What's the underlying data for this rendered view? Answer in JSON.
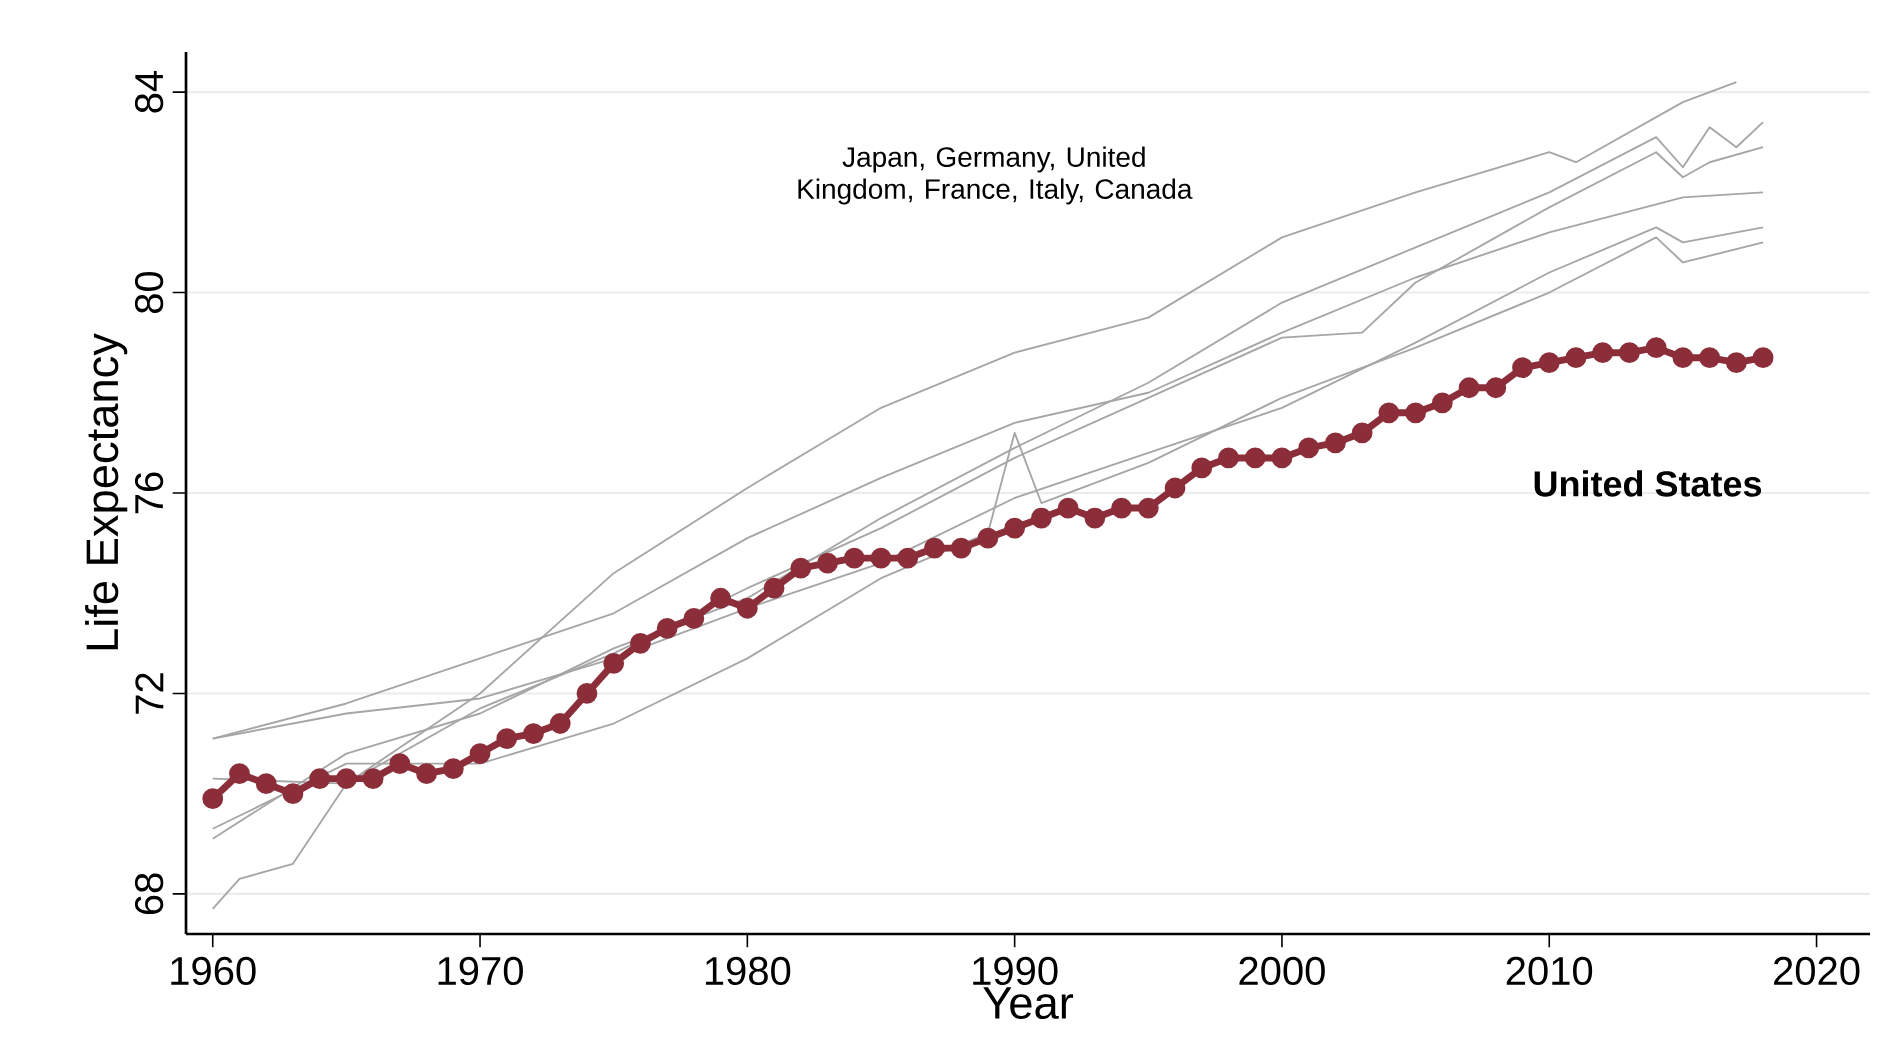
{
  "chart_data": {
    "type": "line",
    "xlabel": "Year",
    "ylabel": "Life Expectancy",
    "xlim": [
      1959,
      2022
    ],
    "ylim": [
      67.2,
      84.8
    ],
    "xticks": [
      1960,
      1970,
      1980,
      1990,
      2000,
      2010,
      2020
    ],
    "yticks": [
      68,
      72,
      76,
      80,
      84
    ],
    "grid": "y",
    "legend": false,
    "marker": "none",
    "line_style": "solid",
    "annotations": [
      "Japan, Germany, United Kingdom, France, Italy, Canada"
    ],
    "series": [
      {
        "color": "#a6a6a6",
        "x": [
          1960,
          1961,
          1963,
          1965,
          1970,
          1975,
          1980,
          1985,
          1990,
          1995,
          2000,
          2005,
          2010,
          2011,
          2015,
          2017
        ],
        "values": [
          67.7,
          68.3,
          68.6,
          70.2,
          72.0,
          74.4,
          76.1,
          77.7,
          78.8,
          79.5,
          81.1,
          82.0,
          82.8,
          82.6,
          83.8,
          84.2
        ]
      },
      {
        "color": "#a6a6a6",
        "x": [
          1960,
          1965,
          1970,
          1975,
          1980,
          1985,
          1990,
          1995,
          2000,
          2005,
          2010,
          2014,
          2015,
          2016,
          2017,
          2018
        ],
        "values": [
          69.1,
          70.8,
          71.6,
          72.9,
          73.9,
          75.5,
          76.9,
          78.2,
          79.8,
          80.9,
          82.0,
          83.1,
          82.5,
          83.3,
          82.9,
          83.4
        ]
      },
      {
        "color": "#a6a6a6",
        "x": [
          1960,
          1965,
          1970,
          1975,
          1980,
          1985,
          1990,
          1995,
          2000,
          2003,
          2005,
          2010,
          2014,
          2015,
          2016,
          2018
        ],
        "values": [
          70.3,
          70.2,
          71.7,
          72.8,
          74.1,
          75.3,
          76.7,
          77.9,
          79.1,
          79.2,
          80.2,
          81.7,
          82.8,
          82.3,
          82.6,
          82.9
        ]
      },
      {
        "color": "#a6a6a6",
        "x": [
          1960,
          1965,
          1970,
          1975,
          1980,
          1985,
          1990,
          1995,
          2000,
          2005,
          2010,
          2015,
          2018
        ],
        "values": [
          71.1,
          71.8,
          72.7,
          73.6,
          75.1,
          76.3,
          77.4,
          78.0,
          79.2,
          80.3,
          81.2,
          81.9,
          82.0
        ]
      },
      {
        "color": "#a6a6a6",
        "x": [
          1960,
          1965,
          1970,
          1975,
          1980,
          1985,
          1990,
          1995,
          2000,
          2005,
          2010,
          2014,
          2015,
          2018
        ],
        "values": [
          71.1,
          71.6,
          71.9,
          72.7,
          73.7,
          74.6,
          75.9,
          76.8,
          77.7,
          79.0,
          80.4,
          81.3,
          81.0,
          81.3
        ]
      },
      {
        "color": "#a6a6a6",
        "x": [
          1960,
          1965,
          1970,
          1975,
          1980,
          1985,
          1989,
          1990,
          1991,
          1995,
          2000,
          2005,
          2010,
          2014,
          2015,
          2018
        ],
        "values": [
          69.3,
          70.6,
          70.6,
          71.4,
          72.7,
          74.3,
          75.2,
          77.2,
          75.8,
          76.6,
          77.9,
          78.9,
          80.0,
          81.1,
          80.6,
          81.0
        ]
      },
      {
        "name": "United States",
        "color": "#8b2e3a",
        "marker": "circle",
        "x": [
          1960,
          1961,
          1962,
          1963,
          1964,
          1965,
          1966,
          1967,
          1968,
          1969,
          1970,
          1971,
          1972,
          1973,
          1974,
          1975,
          1976,
          1977,
          1978,
          1979,
          1980,
          1981,
          1982,
          1983,
          1984,
          1985,
          1986,
          1987,
          1988,
          1989,
          1990,
          1991,
          1992,
          1993,
          1994,
          1995,
          1996,
          1997,
          1998,
          1999,
          2000,
          2001,
          2002,
          2003,
          2004,
          2005,
          2006,
          2007,
          2008,
          2009,
          2010,
          2011,
          2012,
          2013,
          2014,
          2015,
          2016,
          2017,
          2018
        ],
        "values": [
          69.9,
          70.4,
          70.2,
          70.0,
          70.3,
          70.3,
          70.3,
          70.6,
          70.4,
          70.5,
          70.8,
          71.1,
          71.2,
          71.4,
          72.0,
          72.6,
          73.0,
          73.3,
          73.5,
          73.9,
          73.7,
          74.1,
          74.5,
          74.6,
          74.7,
          74.7,
          74.7,
          74.9,
          74.9,
          75.1,
          75.3,
          75.5,
          75.7,
          75.5,
          75.7,
          75.7,
          76.1,
          76.5,
          76.7,
          76.7,
          76.7,
          76.9,
          77.0,
          77.2,
          77.6,
          77.6,
          77.8,
          78.1,
          78.1,
          78.5,
          78.6,
          78.7,
          78.8,
          78.8,
          78.9,
          78.7,
          78.7,
          78.6,
          78.7
        ]
      }
    ]
  }
}
